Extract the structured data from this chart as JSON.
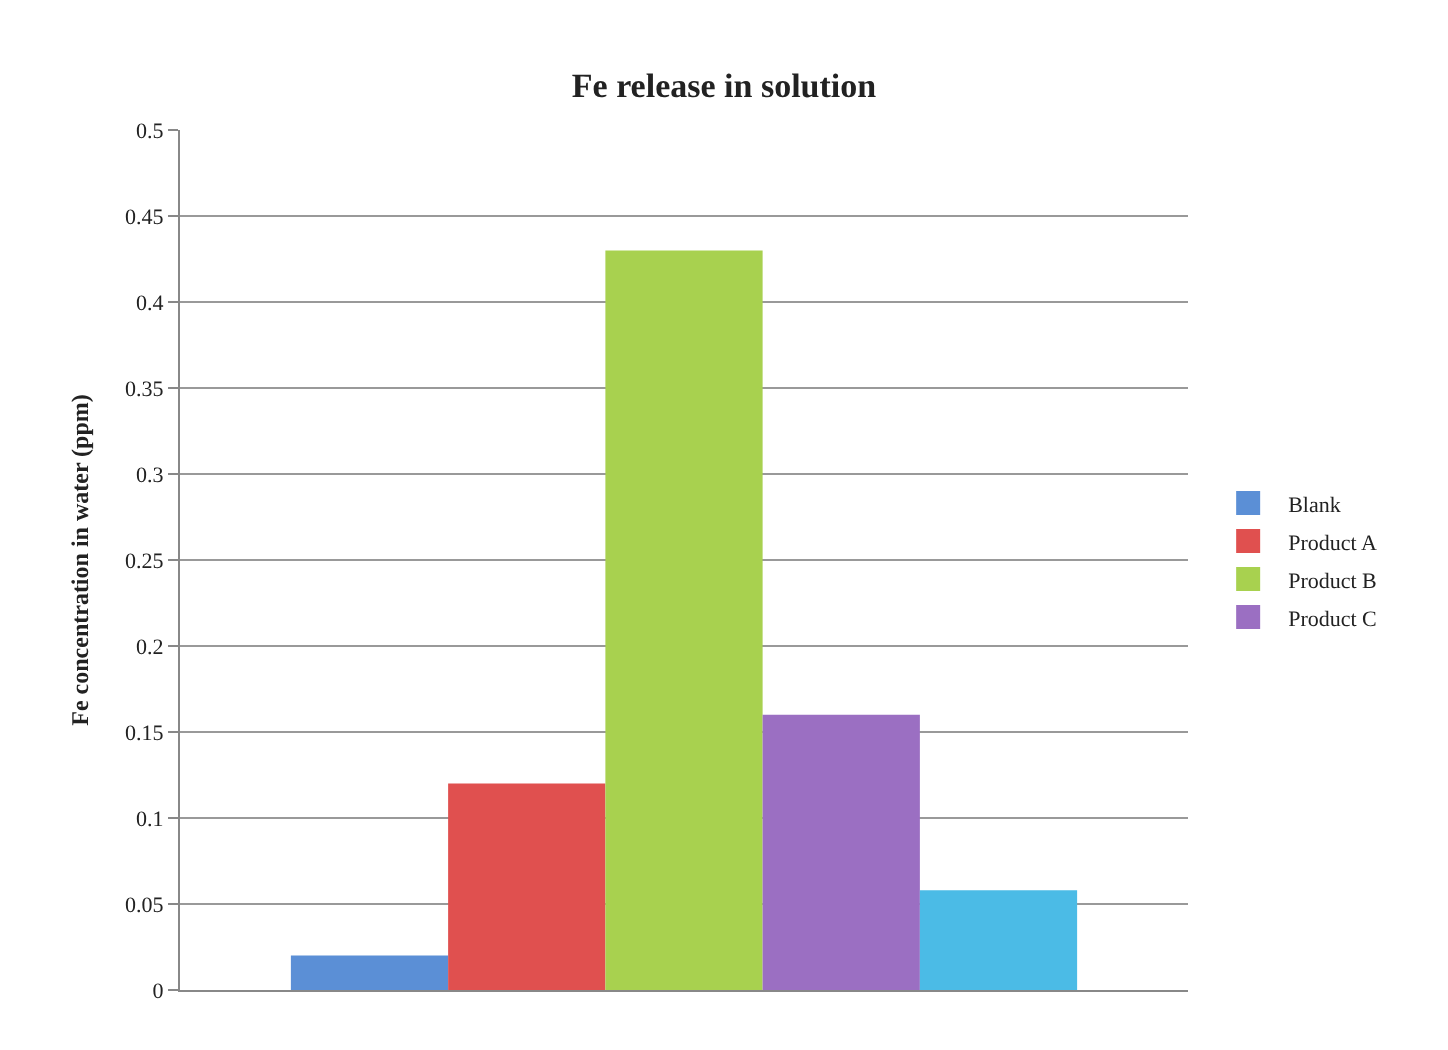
{
  "chart_data": {
    "type": "bar",
    "title": "Fe release in solution",
    "ylabel": "Fe concentration in water (ppm)",
    "categories": [
      null
    ],
    "series": [
      {
        "name": "Blank",
        "color": "#5b8fd6",
        "values": [
          0.02
        ]
      },
      {
        "name": "Product A",
        "color": "#e0504f",
        "values": [
          0.12
        ]
      },
      {
        "name": "Product B",
        "color": "#a8d14f",
        "values": [
          0.43
        ]
      },
      {
        "name": "Product C",
        "color": "#9b6fc2",
        "values": [
          0.16
        ]
      },
      {
        "color": "#4bbbe6",
        "values": [
          0.058
        ]
      }
    ],
    "ylim": [
      0,
      0.5
    ],
    "yticks": [
      0,
      0.05,
      0.1,
      0.15,
      0.2,
      0.25,
      0.3,
      0.35,
      0.4,
      0.45,
      0.5
    ],
    "grid": "y",
    "legend": "right"
  }
}
